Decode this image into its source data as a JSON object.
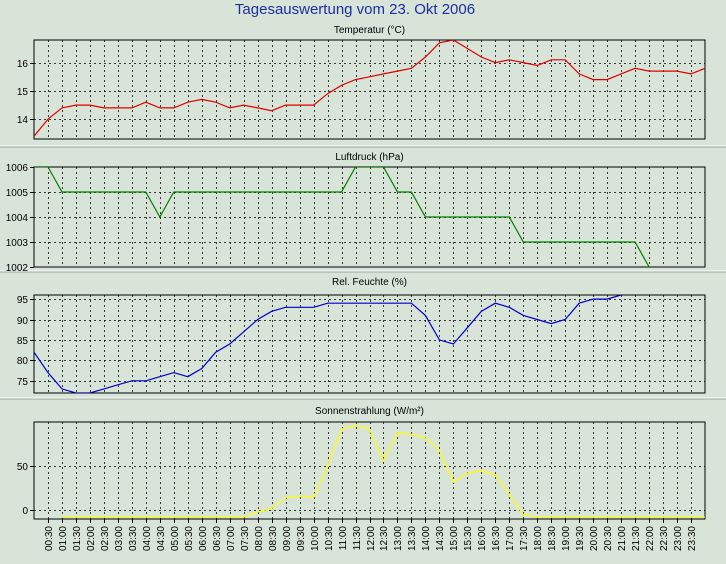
{
  "title": "Tagesauswertung vom 23. Okt 2006",
  "colors": {
    "background": "#d9e4d8",
    "title": "#1a2fa0",
    "temperature": "#e00000",
    "pressure": "#008000",
    "humidity": "#0000cc",
    "solar": "#ffff00"
  },
  "chart_data": [
    {
      "type": "line",
      "title": "Temperatur (°C)",
      "color": "#e00000",
      "ylim": [
        13.3,
        16.8
      ],
      "yticks": [
        14,
        15,
        16
      ],
      "grid": true,
      "x": [
        "00:00",
        "00:30",
        "01:00",
        "01:30",
        "02:00",
        "02:30",
        "03:00",
        "03:30",
        "04:00",
        "04:30",
        "05:00",
        "05:30",
        "06:00",
        "06:30",
        "07:00",
        "07:30",
        "08:00",
        "08:30",
        "09:00",
        "09:30",
        "10:00",
        "10:30",
        "11:00",
        "11:30",
        "12:00",
        "12:30",
        "13:00",
        "13:30",
        "14:00",
        "14:30",
        "15:00",
        "15:30",
        "16:00",
        "16:30",
        "17:00",
        "17:30",
        "18:00",
        "18:30",
        "19:00",
        "19:30",
        "20:00",
        "20:30",
        "21:00",
        "21:30",
        "22:00",
        "22:30",
        "23:00",
        "23:30",
        "24:00"
      ],
      "values": [
        13.4,
        14.0,
        14.4,
        14.5,
        14.5,
        14.4,
        14.4,
        14.4,
        14.6,
        14.4,
        14.4,
        14.6,
        14.7,
        14.6,
        14.4,
        14.5,
        14.4,
        14.3,
        14.5,
        14.5,
        14.5,
        14.9,
        15.2,
        15.4,
        15.5,
        15.6,
        15.7,
        15.8,
        16.2,
        16.7,
        16.8,
        16.5,
        16.2,
        16.0,
        16.1,
        16.0,
        15.9,
        16.1,
        16.1,
        15.6,
        15.4,
        15.4,
        15.6,
        15.8,
        15.7,
        15.7,
        15.7,
        15.6,
        15.8
      ]
    },
    {
      "type": "line",
      "title": "Luftdruck (hPa)",
      "color": "#008000",
      "ylim": [
        1002,
        1006
      ],
      "yticks": [
        1002,
        1003,
        1004,
        1005,
        1006
      ],
      "grid": true,
      "x": [
        "00:00",
        "00:30",
        "01:00",
        "01:30",
        "02:00",
        "02:30",
        "03:00",
        "03:30",
        "04:00",
        "04:30",
        "05:00",
        "05:30",
        "06:00",
        "06:30",
        "07:00",
        "07:30",
        "08:00",
        "08:30",
        "09:00",
        "09:30",
        "10:00",
        "10:30",
        "11:00",
        "11:30",
        "12:00",
        "12:30",
        "13:00",
        "13:30",
        "14:00",
        "14:30",
        "15:00",
        "15:30",
        "16:00",
        "16:30",
        "17:00",
        "17:30",
        "18:00",
        "18:30",
        "19:00",
        "19:30",
        "20:00",
        "20:30",
        "21:00",
        "21:30",
        "22:00",
        "22:30",
        "23:00",
        "23:30",
        "24:00"
      ],
      "values": [
        1006,
        1006,
        1005,
        1005,
        1005,
        1005,
        1005,
        1005,
        1005,
        1004,
        1005,
        1005,
        1005,
        1005,
        1005,
        1005,
        1005,
        1005,
        1005,
        1005,
        1005,
        1005,
        1005,
        1006,
        1006,
        1006,
        1005,
        1005,
        1004,
        1004,
        1004,
        1004,
        1004,
        1004,
        1004,
        1003,
        1003,
        1003,
        1003,
        1003,
        1003,
        1003,
        1003,
        1003,
        1002,
        null,
        null,
        null,
        null
      ]
    },
    {
      "type": "line",
      "title": "Rel. Feuchte (%)",
      "color": "#0000cc",
      "ylim": [
        72,
        96
      ],
      "yticks": [
        75,
        80,
        85,
        90,
        95
      ],
      "grid": true,
      "x": [
        "00:00",
        "00:30",
        "01:00",
        "01:30",
        "02:00",
        "02:30",
        "03:00",
        "03:30",
        "04:00",
        "04:30",
        "05:00",
        "05:30",
        "06:00",
        "06:30",
        "07:00",
        "07:30",
        "08:00",
        "08:30",
        "09:00",
        "09:30",
        "10:00",
        "10:30",
        "11:00",
        "11:30",
        "12:00",
        "12:30",
        "13:00",
        "13:30",
        "14:00",
        "14:30",
        "15:00",
        "15:30",
        "16:00",
        "16:30",
        "17:00",
        "17:30",
        "18:00",
        "18:30",
        "19:00",
        "19:30",
        "20:00",
        "20:30",
        "21:00",
        "21:30",
        "22:00",
        "22:30",
        "23:00",
        "23:30",
        "24:00"
      ],
      "values": [
        82,
        77,
        73,
        72,
        72,
        73,
        74,
        75,
        75,
        76,
        77,
        76,
        78,
        82,
        84,
        87,
        90,
        92,
        93,
        93,
        93,
        94,
        94,
        94,
        94,
        94,
        94,
        94,
        91,
        85,
        84,
        88,
        92,
        94,
        93,
        91,
        90,
        89,
        90,
        94,
        95,
        95,
        96,
        null,
        null,
        null,
        null,
        null,
        null
      ]
    },
    {
      "type": "line",
      "title": "Sonnenstrahlung (W/m²)",
      "color": "#ffff00",
      "ylim": [
        -10,
        100
      ],
      "yticks": [
        0,
        50
      ],
      "grid": true,
      "x": [
        "00:00",
        "00:30",
        "01:00",
        "01:30",
        "02:00",
        "02:30",
        "03:00",
        "03:30",
        "04:00",
        "04:30",
        "05:00",
        "05:30",
        "06:00",
        "06:30",
        "07:00",
        "07:30",
        "08:00",
        "08:30",
        "09:00",
        "09:30",
        "10:00",
        "10:30",
        "11:00",
        "11:30",
        "12:00",
        "12:30",
        "13:00",
        "13:30",
        "14:00",
        "14:30",
        "15:00",
        "15:30",
        "16:00",
        "16:30",
        "17:00",
        "17:30",
        "18:00",
        "18:30",
        "19:00",
        "19:30",
        "20:00",
        "20:30",
        "21:00",
        "21:30",
        "22:00",
        "22:30",
        "23:00",
        "23:30",
        "24:00"
      ],
      "values": [
        null,
        null,
        -8,
        -8,
        -8,
        -8,
        -8,
        -8,
        -8,
        -8,
        -8,
        -8,
        -8,
        -8,
        -8,
        -8,
        -2,
        2,
        14,
        16,
        15,
        50,
        92,
        96,
        92,
        56,
        88,
        86,
        82,
        68,
        32,
        42,
        45,
        40,
        18,
        -5,
        -8,
        -8,
        -8,
        -8,
        -8,
        -8,
        -8,
        -8,
        -8,
        -8,
        -8,
        -8,
        -8
      ],
      "xticks": [
        "00:30",
        "01:00",
        "01:30",
        "02:00",
        "02:30",
        "03:00",
        "03:30",
        "04:00",
        "04:30",
        "05:00",
        "05:30",
        "06:00",
        "06:30",
        "07:00",
        "07:30",
        "08:00",
        "08:30",
        "09:00",
        "09:30",
        "10:00",
        "10:30",
        "11:00",
        "11:30",
        "12:00",
        "12:30",
        "13:00",
        "13:30",
        "14:00",
        "14:30",
        "15:00",
        "15:30",
        "16:00",
        "16:30",
        "17:00",
        "17:30",
        "18:00",
        "18:30",
        "19:00",
        "19:30",
        "20:00",
        "20:30",
        "21:00",
        "21:30",
        "22:00",
        "22:30",
        "23:00",
        "23:30"
      ]
    }
  ]
}
